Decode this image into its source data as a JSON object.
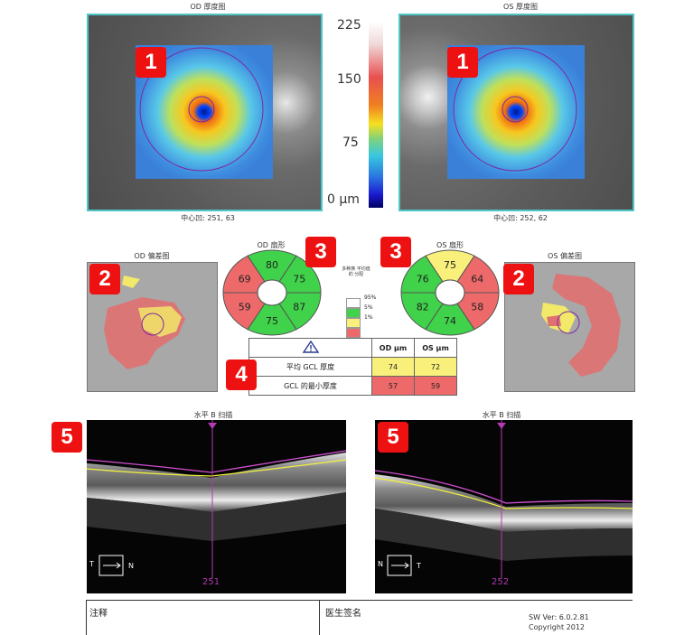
{
  "thickness_maps": {
    "od_title": "OD 厚度图",
    "os_title": "OS 厚度图",
    "od_center": "中心凹: 251, 63",
    "os_center": "中心凹: 252, 62"
  },
  "colorbar": {
    "ticks": [
      "225",
      "150",
      "75",
      "0 µm"
    ]
  },
  "badges": {
    "b1": "1",
    "b2": "2",
    "b3": "3",
    "b4": "4",
    "b5": "5"
  },
  "deviation_maps": {
    "od_title": "OD 偏差图",
    "os_title": "OS 偏差图"
  },
  "sectors": {
    "od_title": "OD 扇形",
    "os_title": "OS 扇形",
    "od_values": [
      "80",
      "75",
      "87",
      "75",
      "59",
      "69"
    ],
    "od_colors": [
      "#3fd24a",
      "#3fd24a",
      "#3fd24a",
      "#3fd24a",
      "#ee6a6a",
      "#ee6a6a"
    ],
    "os_values": [
      "75",
      "64",
      "58",
      "74",
      "82",
      "76"
    ],
    "os_colors": [
      "#f8f07a",
      "#ee6a6a",
      "#ee6a6a",
      "#3fd24a",
      "#3fd24a",
      "#3fd24a"
    ]
  },
  "legend": {
    "title": "多种族 平均值的 分配",
    "items": [
      {
        "label": "95%",
        "color": "#ffffff"
      },
      {
        "label": "5%",
        "color": "#3fd24a"
      },
      {
        "label": "1%",
        "color": "#f8f07a"
      },
      {
        "label": "",
        "color": "#ee6a6a"
      }
    ]
  },
  "gcl_table": {
    "warning_icon": "warning-triangle-icon",
    "col_od": "OD µm",
    "col_os": "OS µm",
    "rows": [
      {
        "label": "平均 GCL 厚度",
        "od": "74",
        "os": "72",
        "od_color": "#f8f07a",
        "os_color": "#f8f07a"
      },
      {
        "label": "GCL 的最小厚度",
        "od": "57",
        "os": "59",
        "od_color": "#ee6a6a",
        "os_color": "#ee6a6a"
      }
    ]
  },
  "bscans": {
    "od_title": "水平 B 扫描",
    "os_title": "水平 B 扫描",
    "od_index": "251",
    "os_index": "252",
    "od_orient_left": "T",
    "od_orient_right": "N",
    "os_orient_left": "N",
    "os_orient_right": "T"
  },
  "footer": {
    "notes_label": "注释",
    "signature_label": "医生签名",
    "sw_version": "SW Ver: 6.0.2.81",
    "copyright": "Copyright 2012"
  }
}
